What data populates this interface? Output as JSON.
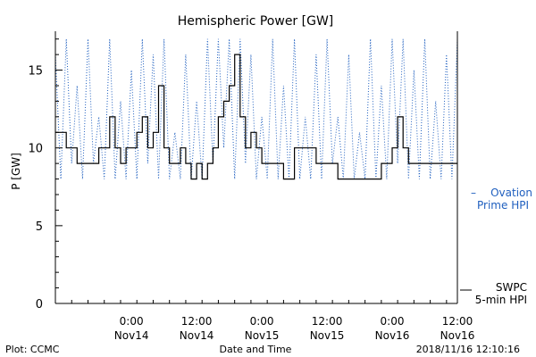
{
  "chart_data": {
    "type": "line",
    "title": "Hemispheric Power [GW]",
    "ylabel": "P [GW]",
    "xlabel": "Date and Time",
    "ylim": [
      0,
      17.5
    ],
    "xlim": [
      "2018-11-13 10:00",
      "2018-11-16 12:00"
    ],
    "yticks": [
      0,
      5,
      10,
      15
    ],
    "xticks": [
      {
        "x": "2018-11-14 00:00",
        "time": "0:00",
        "date": "Nov14"
      },
      {
        "x": "2018-11-14 12:00",
        "time": "12:00",
        "date": "Nov14"
      },
      {
        "x": "2018-11-15 00:00",
        "time": "0:00",
        "date": "Nov15"
      },
      {
        "x": "2018-11-15 12:00",
        "time": "12:00",
        "date": "Nov15"
      },
      {
        "x": "2018-11-16 00:00",
        "time": "0:00",
        "date": "Nov16"
      },
      {
        "x": "2018-11-16 12:00",
        "time": "12:00",
        "date": "Nov16"
      }
    ],
    "grid": false,
    "legend_placement": "right",
    "series": [
      {
        "name_lines": [
          "SWPC",
          "5-min HPI"
        ],
        "legend_prefix": "",
        "color": "#000000",
        "style": "solid-step",
        "x": [
          "2018-11-13 10:00",
          "2018-11-13 12:00",
          "2018-11-13 14:00",
          "2018-11-13 16:00",
          "2018-11-13 18:00",
          "2018-11-13 20:00",
          "2018-11-13 21:00",
          "2018-11-13 22:00",
          "2018-11-13 23:00",
          "2018-11-14 00:00",
          "2018-11-14 01:00",
          "2018-11-14 02:00",
          "2018-11-14 03:00",
          "2018-11-14 04:00",
          "2018-11-14 05:00",
          "2018-11-14 06:00",
          "2018-11-14 07:00",
          "2018-11-14 08:00",
          "2018-11-14 09:00",
          "2018-11-14 10:00",
          "2018-11-14 11:00",
          "2018-11-14 12:00",
          "2018-11-14 13:00",
          "2018-11-14 14:00",
          "2018-11-14 15:00",
          "2018-11-14 16:00",
          "2018-11-14 17:00",
          "2018-11-14 18:00",
          "2018-11-14 19:00",
          "2018-11-14 20:00",
          "2018-11-14 21:00",
          "2018-11-14 22:00",
          "2018-11-14 23:00",
          "2018-11-15 00:00",
          "2018-11-15 02:00",
          "2018-11-15 04:00",
          "2018-11-15 06:00",
          "2018-11-15 08:00",
          "2018-11-15 10:00",
          "2018-11-15 12:00",
          "2018-11-15 14:00",
          "2018-11-15 16:00",
          "2018-11-15 18:00",
          "2018-11-15 20:00",
          "2018-11-15 22:00",
          "2018-11-16 00:00",
          "2018-11-16 01:00",
          "2018-11-16 02:00",
          "2018-11-16 03:00",
          "2018-11-16 04:00",
          "2018-11-16 06:00",
          "2018-11-16 08:00",
          "2018-11-16 10:00",
          "2018-11-16 12:00"
        ],
        "values": [
          11,
          10,
          9,
          9,
          10,
          12,
          10,
          9,
          10,
          10,
          11,
          12,
          10,
          11,
          14,
          10,
          9,
          9,
          10,
          9,
          8,
          9,
          8,
          9,
          10,
          12,
          13,
          14,
          16,
          12,
          10,
          11,
          10,
          9,
          9,
          8,
          10,
          10,
          9,
          9,
          8,
          8,
          8,
          8,
          9,
          10,
          12,
          10,
          9,
          9,
          9,
          9,
          9,
          9
        ]
      },
      {
        "name_lines": [
          "Ovation",
          "Prime HPI"
        ],
        "legend_prefix": "–",
        "color": "#1f5fbf",
        "style": "dotted",
        "x": [
          "2018-11-13 10:00",
          "2018-11-13 11:00",
          "2018-11-13 12:00",
          "2018-11-13 13:00",
          "2018-11-13 14:00",
          "2018-11-13 15:00",
          "2018-11-13 16:00",
          "2018-11-13 17:00",
          "2018-11-13 18:00",
          "2018-11-13 19:00",
          "2018-11-13 20:00",
          "2018-11-13 21:00",
          "2018-11-13 22:00",
          "2018-11-13 23:00",
          "2018-11-14 00:00",
          "2018-11-14 01:00",
          "2018-11-14 02:00",
          "2018-11-14 03:00",
          "2018-11-14 04:00",
          "2018-11-14 05:00",
          "2018-11-14 06:00",
          "2018-11-14 07:00",
          "2018-11-14 08:00",
          "2018-11-14 09:00",
          "2018-11-14 10:00",
          "2018-11-14 11:00",
          "2018-11-14 12:00",
          "2018-11-14 13:00",
          "2018-11-14 14:00",
          "2018-11-14 15:00",
          "2018-11-14 16:00",
          "2018-11-14 17:00",
          "2018-11-14 18:00",
          "2018-11-14 19:00",
          "2018-11-14 20:00",
          "2018-11-14 21:00",
          "2018-11-14 22:00",
          "2018-11-14 23:00",
          "2018-11-15 00:00",
          "2018-11-15 01:00",
          "2018-11-15 02:00",
          "2018-11-15 03:00",
          "2018-11-15 04:00",
          "2018-11-15 05:00",
          "2018-11-15 06:00",
          "2018-11-15 07:00",
          "2018-11-15 08:00",
          "2018-11-15 09:00",
          "2018-11-15 10:00",
          "2018-11-15 11:00",
          "2018-11-15 12:00",
          "2018-11-15 13:00",
          "2018-11-15 14:00",
          "2018-11-15 15:00",
          "2018-11-15 16:00",
          "2018-11-15 17:00",
          "2018-11-15 18:00",
          "2018-11-15 19:00",
          "2018-11-15 20:00",
          "2018-11-15 21:00",
          "2018-11-15 22:00",
          "2018-11-15 23:00",
          "2018-11-16 00:00",
          "2018-11-16 01:00",
          "2018-11-16 02:00",
          "2018-11-16 03:00",
          "2018-11-16 04:00",
          "2018-11-16 05:00",
          "2018-11-16 06:00",
          "2018-11-16 07:00",
          "2018-11-16 08:00",
          "2018-11-16 09:00",
          "2018-11-16 10:00",
          "2018-11-16 11:00",
          "2018-11-16 12:00"
        ],
        "values": [
          16,
          8,
          17,
          9,
          14,
          8,
          17,
          9,
          12,
          8,
          17,
          8,
          13,
          8,
          15,
          8,
          17,
          9,
          16,
          8,
          17,
          8,
          11,
          8,
          16,
          8,
          13,
          8,
          17,
          9,
          17,
          10,
          17,
          8,
          17,
          9,
          16,
          8,
          12,
          8,
          17,
          8,
          14,
          8,
          17,
          8,
          12,
          8,
          16,
          8,
          17,
          9,
          12,
          8,
          16,
          8,
          11,
          8,
          17,
          8,
          14,
          8,
          17,
          9,
          17,
          8,
          15,
          8,
          17,
          8,
          13,
          8,
          16,
          8,
          17
        ]
      }
    ]
  },
  "footer": {
    "left": "Plot: CCMC",
    "center": "Date and Time",
    "right": "2018/11/16 12:10:16"
  }
}
